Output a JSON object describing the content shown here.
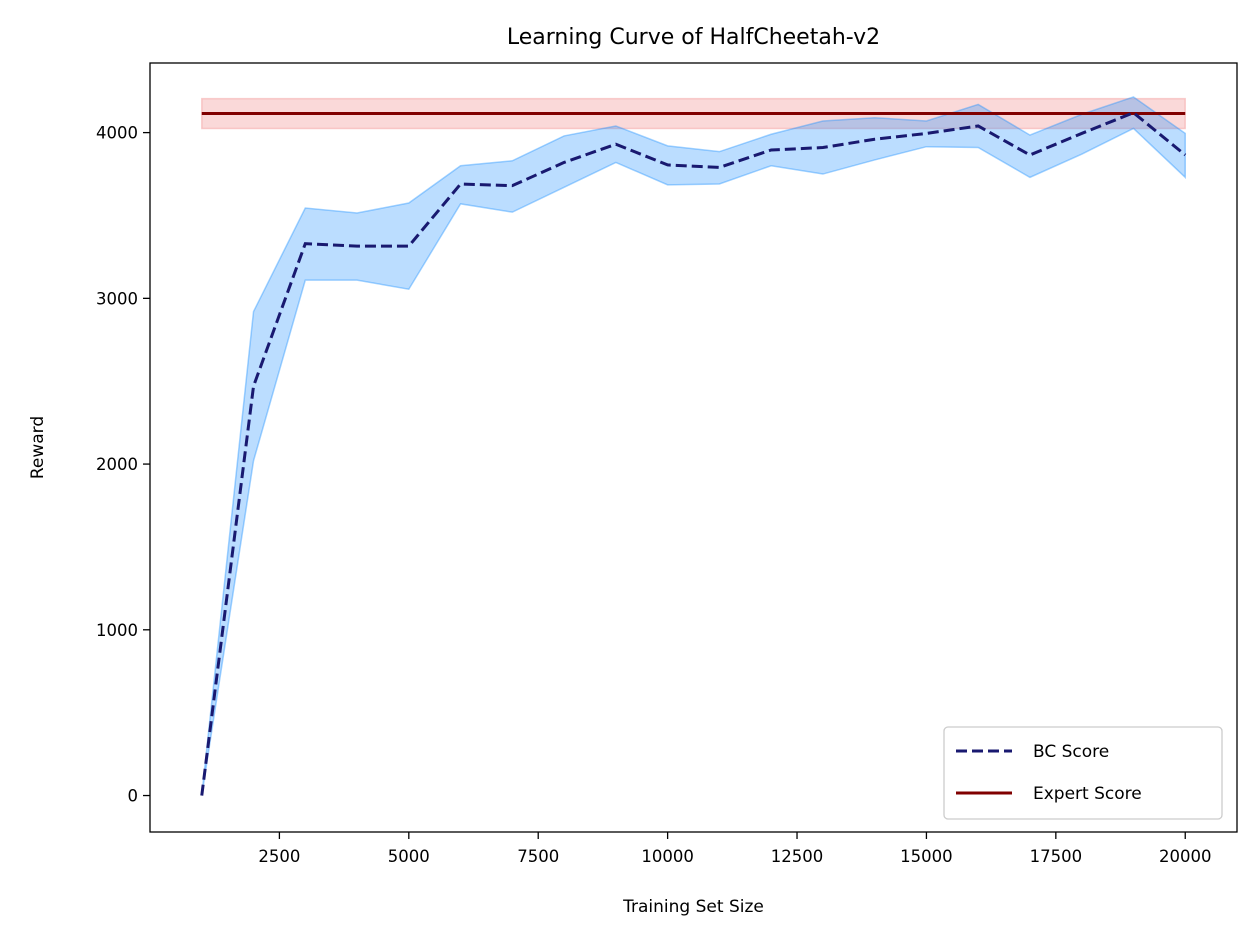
{
  "chart_data": {
    "type": "line",
    "title": "Learning Curve of HalfCheetah-v2",
    "xlabel": "Training Set Size",
    "ylabel": "Reward",
    "xlim": [
      0,
      21000
    ],
    "ylim": [
      -220,
      4420
    ],
    "xticks": [
      2500,
      5000,
      7500,
      10000,
      12500,
      15000,
      17500,
      20000
    ],
    "yticks": [
      0,
      1000,
      2000,
      3000,
      4000
    ],
    "grid": false,
    "legend_position": "bottom-right",
    "series": [
      {
        "name": "BC Score",
        "style": "dashed",
        "color": "#191970",
        "band_color": "#1e90ff",
        "x": [
          1000,
          2000,
          3000,
          4000,
          5000,
          6000,
          7000,
          8000,
          9000,
          10000,
          11000,
          12000,
          13000,
          14000,
          15000,
          16000,
          17000,
          18000,
          19000,
          20000
        ],
        "y": [
          0,
          2470,
          3330,
          3315,
          3315,
          3690,
          3680,
          3820,
          3930,
          3805,
          3790,
          3895,
          3910,
          3960,
          3995,
          4040,
          3865,
          3995,
          4120,
          3865
        ],
        "upper": [
          0,
          2920,
          3545,
          3515,
          3575,
          3800,
          3830,
          3980,
          4040,
          3920,
          3885,
          3990,
          4070,
          4090,
          4070,
          4170,
          3985,
          4110,
          4215,
          3995
        ],
        "lower": [
          0,
          2020,
          3110,
          3110,
          3055,
          3570,
          3520,
          3670,
          3820,
          3685,
          3690,
          3800,
          3750,
          3835,
          3915,
          3910,
          3730,
          3870,
          4025,
          3730
        ]
      },
      {
        "name": "Expert Score",
        "style": "solid",
        "color": "#800000",
        "band_color": "#f08080",
        "x": [
          1000,
          20000
        ],
        "y": [
          4115,
          4115
        ],
        "upper": [
          4205,
          4205
        ],
        "lower": [
          4025,
          4025
        ]
      }
    ]
  }
}
